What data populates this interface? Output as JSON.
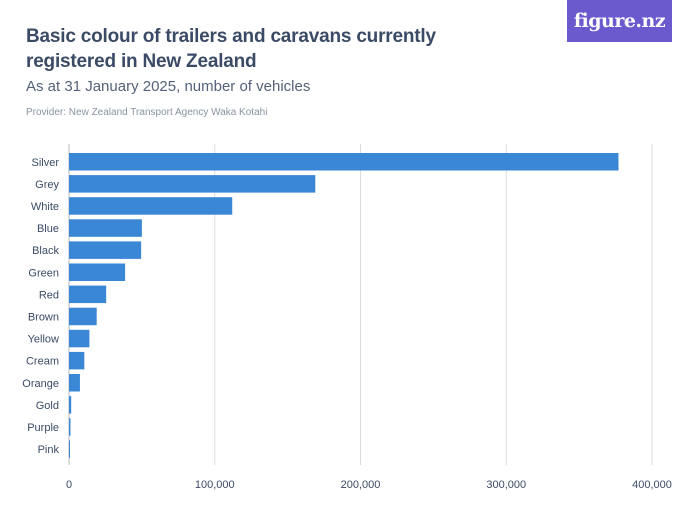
{
  "header": {
    "title": "Basic colour of trailers and caravans currently registered in New Zealand",
    "subtitle": "As at 31 January 2025, number of vehicles",
    "provider": "Provider: New Zealand Transport Agency Waka Kotahi",
    "logo_text": "figure.nz"
  },
  "colors": {
    "bar": "#3a87d6",
    "grid": "#dcdcdc",
    "label": "#3b4b66",
    "logo_bg": "#6a5acd"
  },
  "chart_data": {
    "type": "bar",
    "orientation": "horizontal",
    "categories": [
      "Silver",
      "Grey",
      "White",
      "Blue",
      "Black",
      "Green",
      "Red",
      "Brown",
      "Yellow",
      "Cream",
      "Orange",
      "Gold",
      "Purple",
      "Pink"
    ],
    "values": [
      377000,
      169000,
      112000,
      50000,
      49500,
      38500,
      25500,
      19000,
      14000,
      10500,
      7500,
      1500,
      1000,
      500
    ],
    "xlim": [
      0,
      400000
    ],
    "x_ticks": [
      0,
      100000,
      200000,
      300000,
      400000
    ],
    "x_tick_labels": [
      "0",
      "100,000",
      "200,000",
      "300,000",
      "400,000"
    ],
    "grid": true
  }
}
